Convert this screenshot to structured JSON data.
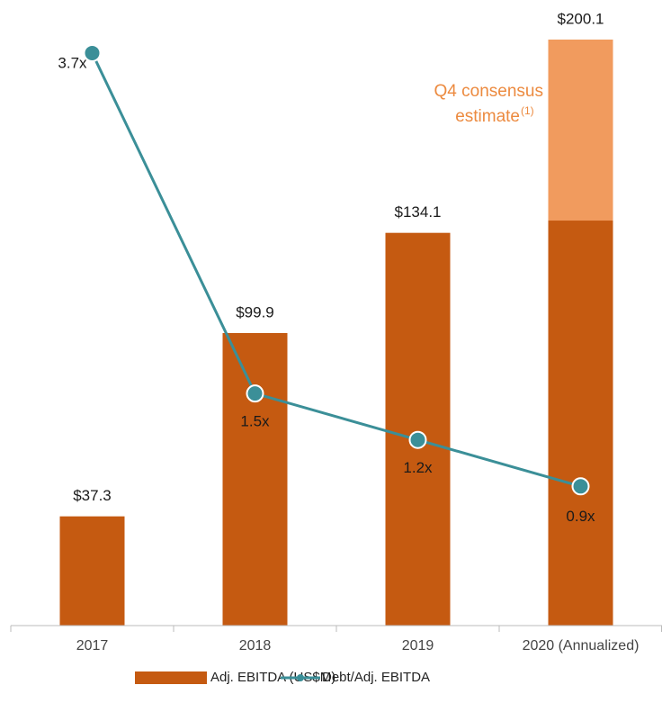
{
  "chart_data": {
    "type": "bar_line",
    "categories": [
      "2017",
      "2018",
      "2019",
      "2020 (Annualized)"
    ],
    "bar_series": [
      {
        "name": "Adj. EBITDA (US$M)",
        "color": "#c55a11",
        "values": [
          37.3,
          99.9,
          134.1,
          138.3
        ]
      },
      {
        "color": "#f19b5e",
        "values": [
          null,
          null,
          null,
          61.8
        ]
      }
    ],
    "totals": [
      37.3,
      99.9,
      134.1,
      200.1
    ],
    "total_labels": [
      "$37.3",
      "$99.9",
      "$134.1",
      "$200.1"
    ],
    "line_series": {
      "name": "Debt/Adj. EBITDA",
      "color": "#3b8f98",
      "axis": "y2",
      "values": [
        3.7,
        1.5,
        1.2,
        0.9
      ],
      "value_labels": [
        "3.7x",
        "1.5x",
        "1.2x",
        "0.9x"
      ]
    },
    "annotation": {
      "lines": [
        "Q4 consensus",
        "estimate"
      ],
      "superscript": "(1)"
    },
    "ylim": [
      0,
      205
    ],
    "y2lim": [
      0,
      3.88
    ]
  }
}
